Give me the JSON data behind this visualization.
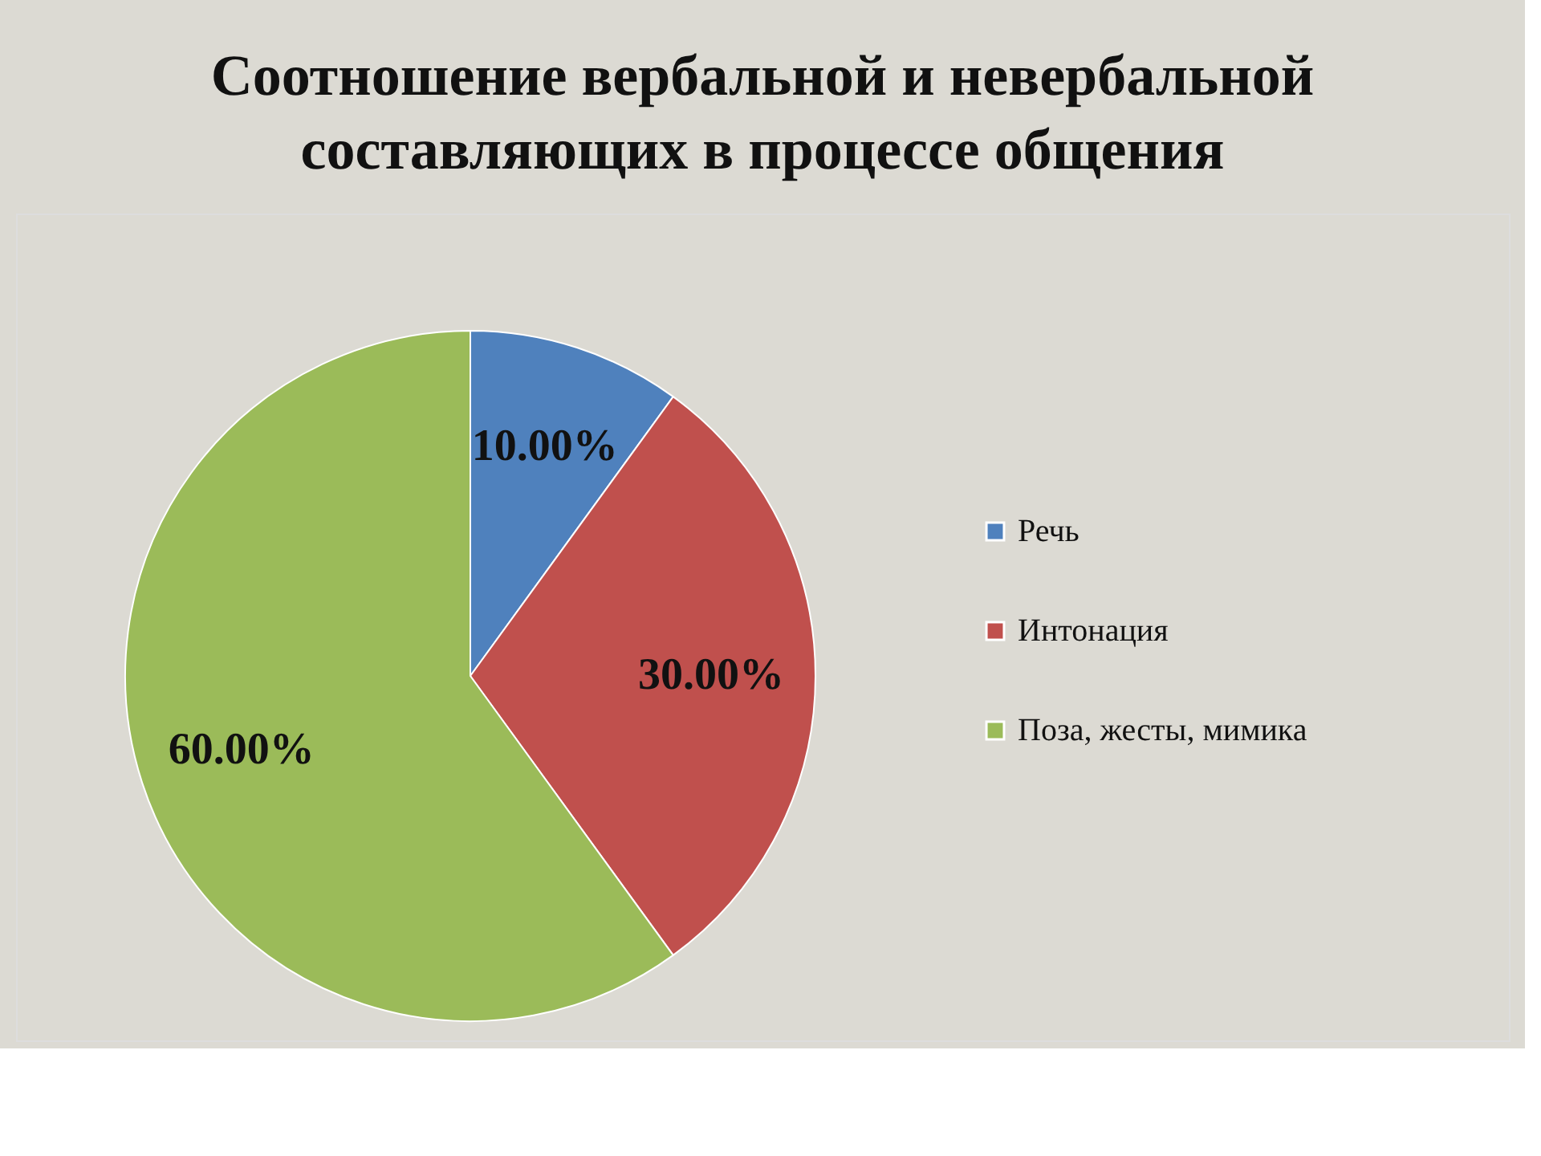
{
  "chart_data": {
    "type": "pie",
    "title": "Соотношение  вербальной и невербальной\nсоставляющих в процессе  общения",
    "categories": [
      "Речь",
      "Интонация",
      "Поза, жесты, мимика"
    ],
    "values": [
      10,
      30,
      60
    ],
    "colors": [
      "#4f81bd",
      "#c0504d",
      "#9bbb59"
    ],
    "value_labels": [
      "10.00%",
      "30.00%",
      "60.00%"
    ],
    "legend": "right"
  }
}
